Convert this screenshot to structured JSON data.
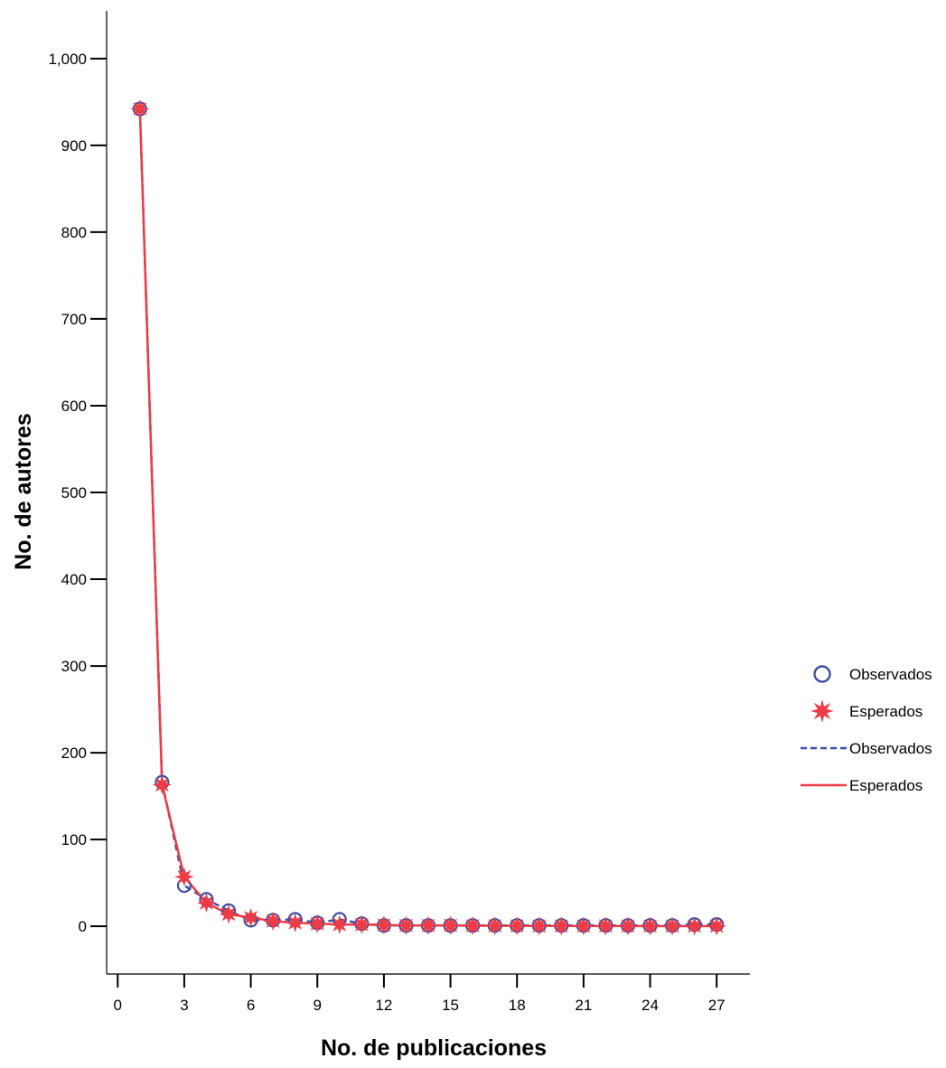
{
  "chart_data": {
    "type": "line",
    "title": "",
    "xlabel": "No. de publicaciones",
    "ylabel": "No. de autores",
    "xlim": [
      -0.5,
      28.5
    ],
    "ylim": [
      -55,
      1055
    ],
    "x_ticks": [
      0,
      3,
      6,
      9,
      12,
      15,
      18,
      21,
      24,
      27
    ],
    "x_tick_labels": [
      "0",
      "3",
      "6",
      "9",
      "12",
      "15",
      "18",
      "21",
      "24",
      "27"
    ],
    "y_ticks": [
      0,
      100,
      200,
      300,
      400,
      500,
      600,
      700,
      800,
      900,
      1000
    ],
    "y_tick_labels": [
      "0",
      "100",
      "200",
      "300",
      "400",
      "500",
      "600",
      "700",
      "800",
      "900",
      "1,000"
    ],
    "grid": false,
    "legend_position": "right",
    "x": [
      1,
      2,
      3,
      4,
      5,
      6,
      7,
      8,
      9,
      10,
      11,
      12,
      13,
      14,
      15,
      16,
      17,
      18,
      19,
      20,
      21,
      22,
      23,
      24,
      25,
      26,
      27
    ],
    "series": [
      {
        "name": "Observados",
        "marker": "circle",
        "line_style": "dashed",
        "color": "#3b4fa6",
        "values": [
          942,
          166,
          47,
          31,
          18,
          7,
          7,
          8,
          4,
          8,
          3,
          1,
          1,
          1,
          1,
          1,
          1,
          1,
          1,
          1,
          1,
          1,
          1,
          1,
          1,
          2,
          2
        ]
      },
      {
        "name": "Esperados",
        "marker": "star",
        "line_style": "solid",
        "color": "#ee3b45",
        "values": [
          942,
          163,
          57,
          27,
          14,
          10,
          6,
          4,
          3,
          2,
          2,
          1.5,
          1,
          1,
          1,
          0.7,
          0.6,
          0.5,
          0.4,
          0.4,
          0.3,
          0.3,
          0.3,
          0.2,
          0.2,
          0.2,
          0.2
        ]
      }
    ],
    "legend": [
      {
        "label": "Observados",
        "kind": "marker-circle",
        "color": "#3b4fa6"
      },
      {
        "label": "Esperados",
        "kind": "marker-star",
        "color": "#ee3b45"
      },
      {
        "label": "Observados",
        "kind": "line-dashed",
        "color": "#3b4fa6"
      },
      {
        "label": "Esperados",
        "kind": "line-solid",
        "color": "#ee3b45"
      }
    ]
  }
}
